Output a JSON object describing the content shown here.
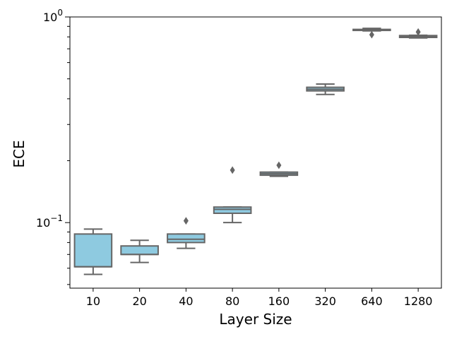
{
  "chart_data": {
    "type": "box",
    "title": "",
    "xlabel": "Layer Size",
    "ylabel": "ECE",
    "yscale": "log",
    "ylim": [
      0.048,
      1.0
    ],
    "y_major_ticks": [
      {
        "value": 0.1,
        "base": "10",
        "exp": "−1"
      },
      {
        "value": 1.0,
        "base": "10",
        "exp": "0"
      }
    ],
    "y_minor_ticks": [
      0.05,
      0.06,
      0.07,
      0.08,
      0.09,
      0.2,
      0.3,
      0.4,
      0.5,
      0.6,
      0.7,
      0.8,
      0.9
    ],
    "categories": [
      "10",
      "20",
      "40",
      "80",
      "160",
      "320",
      "640",
      "1280"
    ],
    "boxes": [
      {
        "category": "10",
        "whisker_low": 0.056,
        "q1": 0.061,
        "median": 0.061,
        "q3": 0.088,
        "whisker_high": 0.093,
        "fliers": []
      },
      {
        "category": "20",
        "whisker_low": 0.064,
        "q1": 0.07,
        "median": 0.07,
        "q3": 0.077,
        "whisker_high": 0.082,
        "fliers": []
      },
      {
        "category": "40",
        "whisker_low": 0.075,
        "q1": 0.08,
        "median": 0.083,
        "q3": 0.088,
        "whisker_high": 0.088,
        "fliers": [
          0.102
        ]
      },
      {
        "category": "80",
        "whisker_low": 0.1,
        "q1": 0.111,
        "median": 0.116,
        "q3": 0.119,
        "whisker_high": 0.119,
        "fliers": [
          0.18
        ]
      },
      {
        "category": "160",
        "whisker_low": 0.168,
        "q1": 0.17,
        "median": 0.173,
        "q3": 0.176,
        "whisker_high": 0.176,
        "fliers": [
          0.19
        ]
      },
      {
        "category": "320",
        "whisker_low": 0.42,
        "q1": 0.437,
        "median": 0.445,
        "q3": 0.455,
        "whisker_high": 0.472,
        "fliers": []
      },
      {
        "category": "640",
        "whisker_low": 0.855,
        "q1": 0.86,
        "median": 0.865,
        "q3": 0.87,
        "whisker_high": 0.88,
        "fliers": [
          0.82
        ]
      },
      {
        "category": "1280",
        "whisker_low": 0.79,
        "q1": 0.795,
        "median": 0.805,
        "q3": 0.812,
        "whisker_high": 0.815,
        "fliers": [
          0.845
        ]
      }
    ],
    "colors": {
      "box_fill": "#8ECAE0",
      "box_edge": "#666666",
      "axis": "#000000",
      "background": "#ffffff"
    }
  }
}
